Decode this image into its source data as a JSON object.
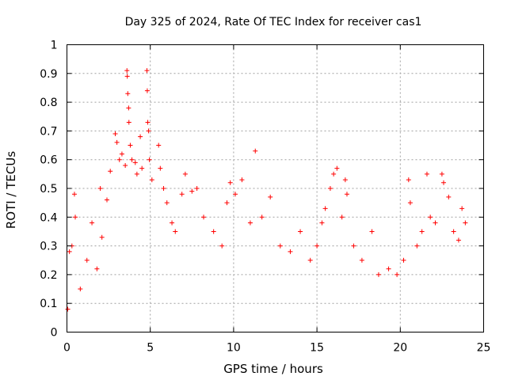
{
  "chart_data": {
    "type": "scatter",
    "title": "Day 325 of 2024, Rate Of TEC Index for receiver cas1",
    "xlabel": "GPS time / hours",
    "ylabel": "ROTI / TECUs",
    "xlim": [
      0,
      25
    ],
    "ylim": [
      0,
      1
    ],
    "xticks": [
      0,
      5,
      10,
      15,
      20,
      25
    ],
    "xtick_labels": [
      "0",
      "5",
      "10",
      "15",
      "20",
      "25"
    ],
    "yticks": [
      0,
      0.1,
      0.2,
      0.3,
      0.4,
      0.5,
      0.6,
      0.7,
      0.8,
      0.9,
      1
    ],
    "ytick_labels": [
      "0",
      "0.1",
      "0.2",
      "0.3",
      "0.4",
      "0.5",
      "0.6",
      "0.7",
      "0.8",
      "0.9",
      "1"
    ],
    "grid": true,
    "marker": "+",
    "color": "#ff0000",
    "x_extent": [
      0,
      24
    ],
    "series": [
      {
        "name": "ROTI",
        "points": [
          [
            0.05,
            0.08
          ],
          [
            0.15,
            0.28
          ],
          [
            0.3,
            0.3
          ],
          [
            0.45,
            0.48
          ],
          [
            0.5,
            0.4
          ],
          [
            0.8,
            0.15
          ],
          [
            1.2,
            0.25
          ],
          [
            1.5,
            0.38
          ],
          [
            1.8,
            0.22
          ],
          [
            2.0,
            0.5
          ],
          [
            2.1,
            0.33
          ],
          [
            2.4,
            0.46
          ],
          [
            2.6,
            0.56
          ],
          [
            2.9,
            0.69
          ],
          [
            3.0,
            0.66
          ],
          [
            3.15,
            0.6
          ],
          [
            3.3,
            0.62
          ],
          [
            3.5,
            0.58
          ],
          [
            3.6,
            0.91
          ],
          [
            3.62,
            0.89
          ],
          [
            3.65,
            0.83
          ],
          [
            3.7,
            0.78
          ],
          [
            3.72,
            0.73
          ],
          [
            3.8,
            0.65
          ],
          [
            3.9,
            0.6
          ],
          [
            4.1,
            0.59
          ],
          [
            4.2,
            0.55
          ],
          [
            4.4,
            0.68
          ],
          [
            4.5,
            0.57
          ],
          [
            4.8,
            0.91
          ],
          [
            4.82,
            0.84
          ],
          [
            4.85,
            0.73
          ],
          [
            4.9,
            0.7
          ],
          [
            4.95,
            0.6
          ],
          [
            5.1,
            0.53
          ],
          [
            5.5,
            0.65
          ],
          [
            5.6,
            0.57
          ],
          [
            5.8,
            0.5
          ],
          [
            6.0,
            0.45
          ],
          [
            6.3,
            0.38
          ],
          [
            6.5,
            0.35
          ],
          [
            6.9,
            0.48
          ],
          [
            7.1,
            0.55
          ],
          [
            7.5,
            0.49
          ],
          [
            7.8,
            0.5
          ],
          [
            8.2,
            0.4
          ],
          [
            8.8,
            0.35
          ],
          [
            9.3,
            0.3
          ],
          [
            9.6,
            0.45
          ],
          [
            9.8,
            0.52
          ],
          [
            10.1,
            0.48
          ],
          [
            10.5,
            0.53
          ],
          [
            11.0,
            0.38
          ],
          [
            11.3,
            0.63
          ],
          [
            11.7,
            0.4
          ],
          [
            12.2,
            0.47
          ],
          [
            12.8,
            0.3
          ],
          [
            13.4,
            0.28
          ],
          [
            14.0,
            0.35
          ],
          [
            14.6,
            0.25
          ],
          [
            15.0,
            0.3
          ],
          [
            15.3,
            0.38
          ],
          [
            15.5,
            0.43
          ],
          [
            15.8,
            0.5
          ],
          [
            16.0,
            0.55
          ],
          [
            16.2,
            0.57
          ],
          [
            16.5,
            0.4
          ],
          [
            16.7,
            0.53
          ],
          [
            16.8,
            0.48
          ],
          [
            17.2,
            0.3
          ],
          [
            17.7,
            0.25
          ],
          [
            18.3,
            0.35
          ],
          [
            18.7,
            0.2
          ],
          [
            19.3,
            0.22
          ],
          [
            19.8,
            0.2
          ],
          [
            20.2,
            0.25
          ],
          [
            20.5,
            0.53
          ],
          [
            20.6,
            0.45
          ],
          [
            21.0,
            0.3
          ],
          [
            21.3,
            0.35
          ],
          [
            21.6,
            0.55
          ],
          [
            21.8,
            0.4
          ],
          [
            22.1,
            0.38
          ],
          [
            22.5,
            0.55
          ],
          [
            22.6,
            0.52
          ],
          [
            22.9,
            0.47
          ],
          [
            23.2,
            0.35
          ],
          [
            23.5,
            0.32
          ],
          [
            23.7,
            0.43
          ],
          [
            23.9,
            0.38
          ]
        ]
      }
    ]
  }
}
